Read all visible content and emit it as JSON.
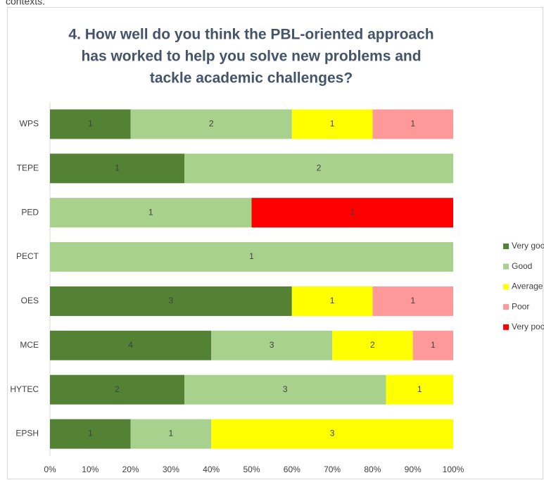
{
  "header": {
    "text": "contexts."
  },
  "chart_data": {
    "type": "bar",
    "orientation": "horizontal",
    "stacking": "percent",
    "title": [
      "4. How well do you think the PBL-oriented approach",
      "has worked to help you solve new problems and",
      "tackle academic challenges?"
    ],
    "categories": [
      "WPS",
      "TEPE",
      "PED",
      "PECT",
      "OES",
      "MCE",
      "HYTEC",
      "EPSH"
    ],
    "series": [
      {
        "name": "Very good",
        "color": "#548235",
        "values": [
          1,
          1,
          null,
          null,
          3,
          4,
          2,
          1
        ]
      },
      {
        "name": "Good",
        "color": "#a9d18e",
        "values": [
          2,
          2,
          1,
          1,
          null,
          3,
          3,
          1
        ]
      },
      {
        "name": "Average",
        "color": "#ffff00",
        "values": [
          1,
          null,
          null,
          null,
          1,
          2,
          1,
          3
        ]
      },
      {
        "name": "Poor",
        "color": "#ff9999",
        "values": [
          1,
          null,
          null,
          null,
          1,
          1,
          null,
          null
        ]
      },
      {
        "name": "Very poor",
        "color": "#ff0000",
        "values": [
          null,
          null,
          1,
          null,
          null,
          null,
          null,
          null
        ]
      }
    ],
    "xlim": [
      0,
      100
    ],
    "xticks": [
      {
        "value": 0,
        "label": "0%"
      },
      {
        "value": 10,
        "label": "10%"
      },
      {
        "value": 20,
        "label": "20%"
      },
      {
        "value": 30,
        "label": "30%"
      },
      {
        "value": 40,
        "label": "40%"
      },
      {
        "value": 50,
        "label": "50%"
      },
      {
        "value": 60,
        "label": "60%"
      },
      {
        "value": 70,
        "label": "70%"
      },
      {
        "value": 80,
        "label": "80%"
      },
      {
        "value": 90,
        "label": "90%"
      },
      {
        "value": 100,
        "label": "100%"
      }
    ],
    "grid": false,
    "legend": "right",
    "data_labels": true
  }
}
